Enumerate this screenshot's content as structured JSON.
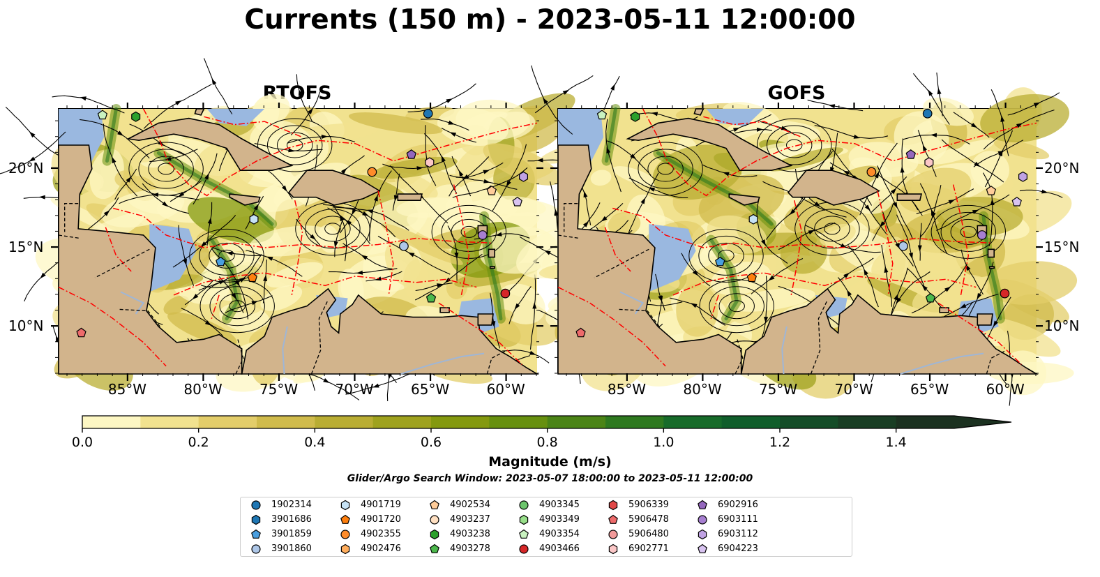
{
  "title": "Currents (150 m) - 2023-05-11 12:00:00",
  "panels": [
    {
      "title": "RTOFS"
    },
    {
      "title": "GOFS"
    }
  ],
  "map": {
    "lon_range": [
      -89.6,
      -58.0
    ],
    "lat_range": [
      7.0,
      23.8
    ],
    "lon_ticks": [
      "85°W",
      "80°W",
      "75°W",
      "70°W",
      "65°W",
      "60°W"
    ],
    "lon_tick_values": [
      -85,
      -80,
      -75,
      -70,
      -65,
      -60
    ],
    "lat_ticks": [
      "20°N",
      "15°N",
      "10°N"
    ],
    "lat_tick_values": [
      20,
      15,
      10
    ],
    "land_color": "#d2b48c",
    "shallow_water_color": "#9ab8e0",
    "eez_line_color": "#ff0000",
    "border_line_color": "#000000",
    "river_color": "#9fb6d6"
  },
  "colorbar": {
    "label": "Magnitude (m/s)",
    "min": 0.0,
    "max": 1.5,
    "extend": "max",
    "ticks": [
      "0.0",
      "0.2",
      "0.4",
      "0.6",
      "0.8",
      "1.0",
      "1.2",
      "1.4"
    ],
    "colors": [
      "#fdf7c3",
      "#f1e28f",
      "#e3cd6a",
      "#d0bb4c",
      "#b9ad33",
      "#9fa21e",
      "#84990f",
      "#67900f",
      "#4b8416",
      "#2e791f",
      "#176b2a",
      "#105e2b",
      "#144d28",
      "#193e24",
      "#1b3120"
    ]
  },
  "search_window": "Glider/Argo Search Window: 2023-05-07 18:00:00 to 2023-05-11 12:00:00",
  "legend": [
    {
      "id": "1902314",
      "marker": "circle",
      "color": "#1f77b4"
    },
    {
      "id": "3901686",
      "marker": "hexagon",
      "color": "#1f77b4"
    },
    {
      "id": "3901859",
      "marker": "pentagon",
      "color": "#4a9fe0"
    },
    {
      "id": "3901860",
      "marker": "circle",
      "color": "#aec7e8"
    },
    {
      "id": "4901719",
      "marker": "hexagon",
      "color": "#c6e2f5"
    },
    {
      "id": "4901720",
      "marker": "pentagon",
      "color": "#ff7f0e"
    },
    {
      "id": "4902355",
      "marker": "circle",
      "color": "#ff8c2a"
    },
    {
      "id": "4902476",
      "marker": "hexagon",
      "color": "#ffad5c"
    },
    {
      "id": "4902534",
      "marker": "pentagon",
      "color": "#ffcc99"
    },
    {
      "id": "4903237",
      "marker": "circle",
      "color": "#ffe0c2"
    },
    {
      "id": "4903238",
      "marker": "hexagon",
      "color": "#2ca02c"
    },
    {
      "id": "4903278",
      "marker": "pentagon",
      "color": "#4cb84c"
    },
    {
      "id": "4903345",
      "marker": "circle",
      "color": "#6cc56c"
    },
    {
      "id": "4903349",
      "marker": "hexagon",
      "color": "#98df8a"
    },
    {
      "id": "4903354",
      "marker": "pentagon",
      "color": "#c9f2c0"
    },
    {
      "id": "4903466",
      "marker": "circle",
      "color": "#d62728"
    },
    {
      "id": "5906339",
      "marker": "hexagon",
      "color": "#e04848"
    },
    {
      "id": "5906478",
      "marker": "pentagon",
      "color": "#ee6b6b"
    },
    {
      "id": "5906480",
      "marker": "circle",
      "color": "#f29a9a"
    },
    {
      "id": "6902771",
      "marker": "hexagon",
      "color": "#fbc7c7"
    },
    {
      "id": "6902916",
      "marker": "pentagon",
      "color": "#9467bd"
    },
    {
      "id": "6903111",
      "marker": "circle",
      "color": "#a77fd1"
    },
    {
      "id": "6903112",
      "marker": "hexagon",
      "color": "#c0a2e3"
    },
    {
      "id": "6904223",
      "marker": "pentagon",
      "color": "#d8c3f0"
    }
  ],
  "floats": [
    {
      "id": "1902314",
      "lon": -65.2,
      "lat": 23.5
    },
    {
      "id": "4903238",
      "lon": -84.5,
      "lat": 23.3
    },
    {
      "id": "4903354",
      "lon": -86.7,
      "lat": 23.4
    },
    {
      "id": "6902916",
      "lon": -66.3,
      "lat": 20.9
    },
    {
      "id": "4902355",
      "lon": -68.9,
      "lat": 19.8
    },
    {
      "id": "6902771",
      "lon": -65.1,
      "lat": 20.4
    },
    {
      "id": "6903112",
      "lon": -58.9,
      "lat": 19.5
    },
    {
      "id": "4902534",
      "lon": -61.0,
      "lat": 18.6
    },
    {
      "id": "6904223",
      "lon": -59.3,
      "lat": 17.9
    },
    {
      "id": "4901719",
      "lon": -76.7,
      "lat": 16.8
    },
    {
      "id": "6903111",
      "lon": -61.6,
      "lat": 15.8
    },
    {
      "id": "3901860",
      "lon": -66.8,
      "lat": 15.1
    },
    {
      "id": "3901859",
      "lon": -78.9,
      "lat": 14.1
    },
    {
      "id": "4901720",
      "lon": -76.8,
      "lat": 13.1
    },
    {
      "id": "4903466",
      "lon": -60.1,
      "lat": 12.1
    },
    {
      "id": "4903278",
      "lon": -65.0,
      "lat": 11.8
    },
    {
      "id": "5906478",
      "lon": -88.1,
      "lat": 9.6
    }
  ]
}
